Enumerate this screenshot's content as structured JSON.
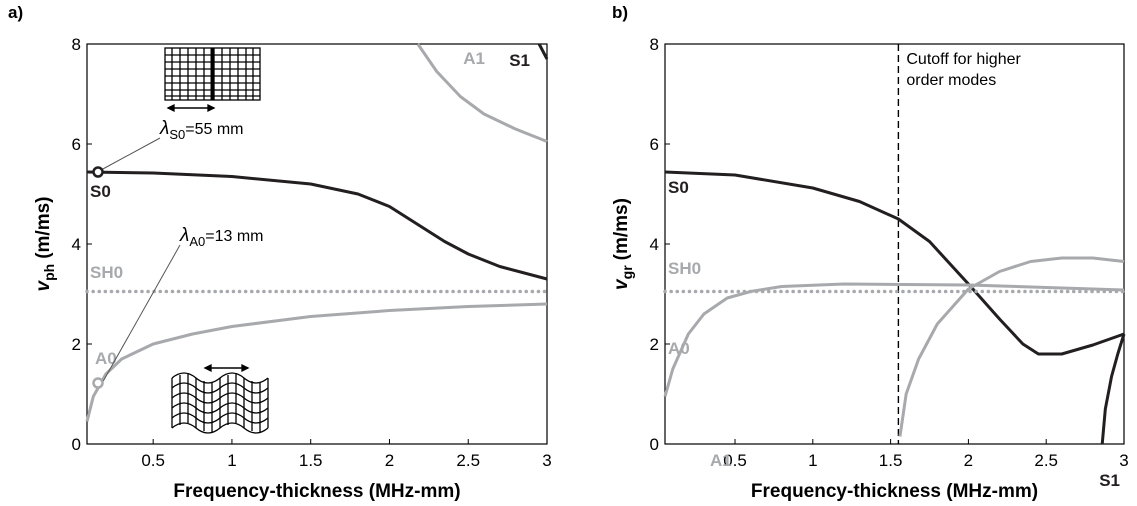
{
  "chart_data": [
    {
      "type": "line",
      "panel": "a)",
      "xlabel": "Frequency-thickness (MHz-mm)",
      "ylabel": {
        "symbol": "v",
        "subscript": "ph",
        "unit": "(m/ms)"
      },
      "xlim": [
        0.08,
        3
      ],
      "xticks": [
        0.5,
        1,
        1.5,
        2,
        2.5,
        3
      ],
      "ylim": [
        0,
        8
      ],
      "yticks": [
        0,
        2,
        4,
        6,
        8
      ],
      "series": [
        {
          "name": "S0",
          "color": "#231f20",
          "style": "solid",
          "x": [
            0.08,
            0.5,
            1,
            1.5,
            1.8,
            2,
            2.2,
            2.35,
            2.5,
            2.7,
            3
          ],
          "values": [
            5.44,
            5.42,
            5.35,
            5.2,
            5.0,
            4.75,
            4.35,
            4.05,
            3.8,
            3.55,
            3.3
          ]
        },
        {
          "name": "SH0",
          "color": "#a7a9ac",
          "style": "dotted",
          "x": [
            0.08,
            3
          ],
          "values": [
            3.05,
            3.05
          ]
        },
        {
          "name": "A0",
          "color": "#a7a9ac",
          "style": "solid",
          "x": [
            0.08,
            0.12,
            0.2,
            0.3,
            0.5,
            0.75,
            1,
            1.5,
            2,
            2.5,
            3
          ],
          "values": [
            0.45,
            0.95,
            1.4,
            1.7,
            2.0,
            2.2,
            2.35,
            2.55,
            2.67,
            2.75,
            2.8
          ]
        },
        {
          "name": "A1",
          "color": "#a7a9ac",
          "style": "solid",
          "x": [
            2.18,
            2.3,
            2.45,
            2.6,
            2.8,
            3
          ],
          "values": [
            8,
            7.45,
            6.95,
            6.6,
            6.3,
            6.05
          ]
        },
        {
          "name": "S1",
          "color": "#231f20",
          "style": "solid",
          "x": [
            2.95,
            3
          ],
          "values": [
            8,
            7.7
          ]
        }
      ],
      "annotations": [
        {
          "point": [
            0.15,
            5.44
          ],
          "color": "#231f20",
          "symbol": "λ",
          "subscript": "S0",
          "text": "=55 mm"
        },
        {
          "point": [
            0.15,
            1.22
          ],
          "color": "#a7a9ac",
          "symbol": "λ",
          "subscript": "A0",
          "text": "=13 mm"
        }
      ]
    },
    {
      "type": "line",
      "panel": "b)",
      "xlabel": "Frequency-thickness (MHz-mm)",
      "ylabel": {
        "symbol": "v",
        "subscript": "gr",
        "unit": "(m/ms)"
      },
      "xlim": [
        0.05,
        3
      ],
      "xticks": [
        0.5,
        1,
        1.5,
        2,
        2.5,
        3
      ],
      "ylim": [
        0,
        8
      ],
      "yticks": [
        0,
        2,
        4,
        6,
        8
      ],
      "cutoff": {
        "x": 1.55,
        "text": [
          "Cutoff for higher",
          "order modes"
        ]
      },
      "series": [
        {
          "name": "S0",
          "color": "#231f20",
          "style": "solid",
          "x": [
            0.05,
            0.5,
            1,
            1.3,
            1.55,
            1.75,
            2,
            2.2,
            2.35,
            2.45,
            2.6,
            2.8,
            3
          ],
          "values": [
            5.44,
            5.38,
            5.12,
            4.85,
            4.5,
            4.05,
            3.2,
            2.5,
            2.0,
            1.8,
            1.8,
            1.98,
            2.2
          ]
        },
        {
          "name": "SH0",
          "color": "#a7a9ac",
          "style": "dotted",
          "x": [
            0.05,
            3
          ],
          "values": [
            3.05,
            3.05
          ]
        },
        {
          "name": "A0",
          "color": "#a7a9ac",
          "style": "solid",
          "x": [
            0.05,
            0.1,
            0.2,
            0.3,
            0.45,
            0.6,
            0.8,
            1.2,
            2,
            3
          ],
          "values": [
            0.95,
            1.5,
            2.2,
            2.6,
            2.92,
            3.05,
            3.15,
            3.2,
            3.18,
            3.08
          ]
        },
        {
          "name": "A1",
          "color": "#a7a9ac",
          "style": "solid",
          "x": [
            1.56,
            1.6,
            1.68,
            1.8,
            2,
            2.2,
            2.4,
            2.6,
            2.8,
            3
          ],
          "values": [
            0.15,
            1.0,
            1.7,
            2.4,
            3.1,
            3.45,
            3.65,
            3.72,
            3.72,
            3.65
          ]
        },
        {
          "name": "S1",
          "color": "#231f20",
          "style": "solid",
          "x": [
            2.86,
            2.88,
            2.92,
            2.96,
            3
          ],
          "values": [
            0,
            0.7,
            1.35,
            1.8,
            2.2
          ]
        }
      ]
    }
  ]
}
